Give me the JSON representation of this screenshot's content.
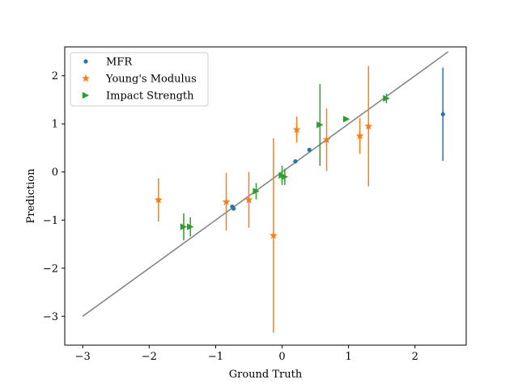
{
  "chart_data": {
    "type": "scatter",
    "xlabel": "Ground Truth",
    "ylabel": "Prediction",
    "xlim": [
      -3.27,
      2.77
    ],
    "ylim": [
      -3.6,
      2.6
    ],
    "xticks": [
      -3,
      -2,
      -1,
      0,
      1,
      2
    ],
    "yticks": [
      -3,
      -2,
      -1,
      0,
      1,
      2
    ],
    "xtick_labels": [
      "−3",
      "−2",
      "−1",
      "0",
      "1",
      "2"
    ],
    "ytick_labels": [
      "−3",
      "−2",
      "−1",
      "0",
      "1",
      "2"
    ],
    "reference_line": {
      "x": [
        -3.0,
        2.5
      ],
      "y": [
        -3.0,
        2.5
      ],
      "color": "#808080"
    },
    "legend_position": "top-left",
    "series": [
      {
        "name": "MFR",
        "marker": "circle",
        "color": "#1f77b4",
        "points": [
          {
            "x": -0.75,
            "y": -0.72,
            "err": 0.0
          },
          {
            "x": -0.73,
            "y": -0.76,
            "err": 0.0
          },
          {
            "x": 0.2,
            "y": 0.22,
            "err": 0.0
          },
          {
            "x": 0.41,
            "y": 0.46,
            "err": 0.0
          },
          {
            "x": 2.42,
            "y": 1.2,
            "err": 0.97
          }
        ]
      },
      {
        "name": "Young's Modulus",
        "marker": "star",
        "color": "#ff7f0e",
        "points": [
          {
            "x": -1.86,
            "y": -0.58,
            "err": 0.45
          },
          {
            "x": -0.84,
            "y": -0.62,
            "err": 0.6
          },
          {
            "x": -0.5,
            "y": -0.58,
            "err": 0.58
          },
          {
            "x": -0.13,
            "y": -1.32,
            "err": 2.02
          },
          {
            "x": 0.22,
            "y": 0.88,
            "err": 0.27
          },
          {
            "x": 0.67,
            "y": 0.67,
            "err": 0.65
          },
          {
            "x": 1.17,
            "y": 0.75,
            "err": 0.37
          },
          {
            "x": 1.3,
            "y": 0.95,
            "err": 1.25
          }
        ]
      },
      {
        "name": "Impact Strength",
        "marker": "triangle-right",
        "color": "#2ca02c",
        "points": [
          {
            "x": -1.48,
            "y": -1.14,
            "err": 0.28
          },
          {
            "x": -1.38,
            "y": -1.14,
            "err": 0.2
          },
          {
            "x": -0.39,
            "y": -0.4,
            "err": 0.17
          },
          {
            "x": 0.0,
            "y": -0.07,
            "err": 0.2
          },
          {
            "x": 0.04,
            "y": -0.1,
            "err": 0.17
          },
          {
            "x": 0.57,
            "y": 0.98,
            "err": 0.85
          },
          {
            "x": 0.97,
            "y": 1.1,
            "err": 0.0
          },
          {
            "x": 1.57,
            "y": 1.53,
            "err": 0.1
          }
        ]
      }
    ]
  }
}
